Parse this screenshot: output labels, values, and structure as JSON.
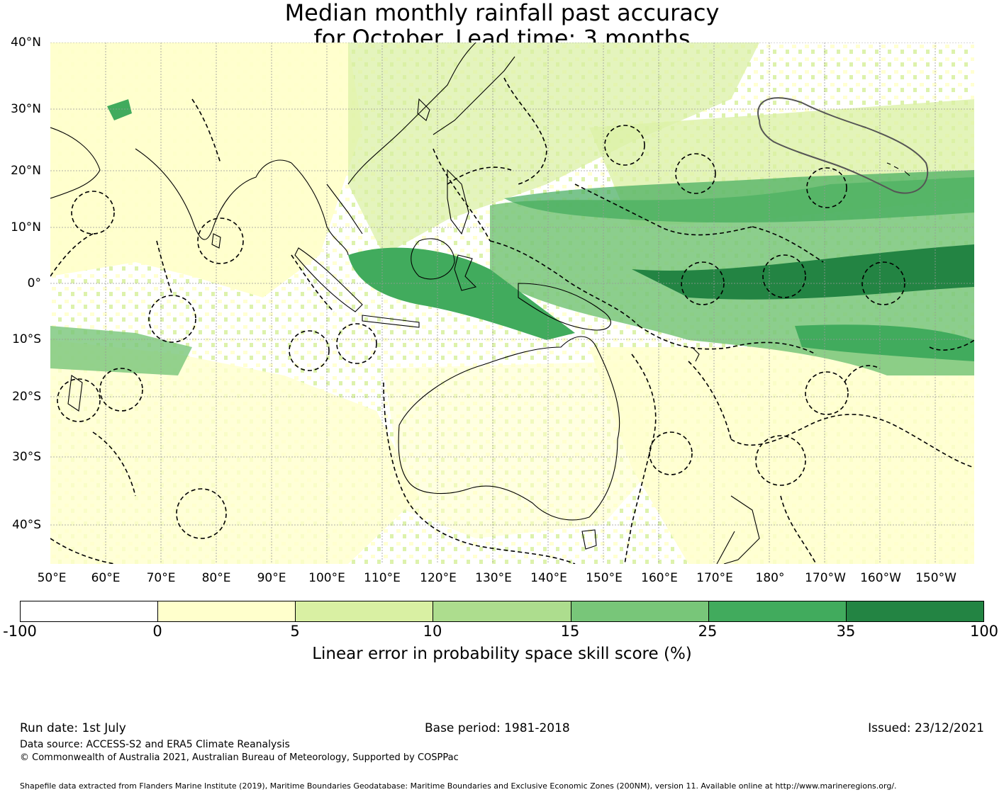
{
  "title": {
    "line1": "Median monthly rainfall past accuracy",
    "line2": "for October. Lead time: 3 months"
  },
  "map": {
    "lat_labels": [
      "40°N",
      "30°N",
      "20°N",
      "10°N",
      "0°",
      "10°S",
      "20°S",
      "30°S",
      "40°S"
    ],
    "lon_labels": [
      "50°E",
      "60°E",
      "70°E",
      "80°E",
      "90°E",
      "100°E",
      "110°E",
      "120°E",
      "130°E",
      "140°E",
      "150°E",
      "160°E",
      "170°E",
      "180°",
      "170°W",
      "160°W",
      "150°W"
    ],
    "lon_range": [
      50,
      210
    ],
    "lat_range": [
      -47,
      40
    ],
    "colors": {
      "low": "#ffffcc",
      "mid": "#addd8e",
      "high": "#238443",
      "boundary": "#000000",
      "land_edge": "#000000"
    }
  },
  "colorbar": {
    "ticks": [
      "-100",
      "0",
      "5",
      "10",
      "15",
      "25",
      "35",
      "100"
    ],
    "colors": [
      "#ffffff",
      "#ffffcc",
      "#d9f0a3",
      "#addd8e",
      "#78c679",
      "#41ab5d",
      "#238443"
    ],
    "label": "Linear error in probability space skill score (%)"
  },
  "footer": {
    "run_date": "Run date: 1st July",
    "base_period": "Base period: 1981-2018",
    "issued": "Issued: 23/12/2021",
    "data_source": "Data source: ACCESS-S2 and ERA5 Climate Reanalysis",
    "copyright": "© Commonwealth of Australia 2021, Australian Bureau of Meteorology, Supported by COSPPac",
    "shapefile": "Shapefile data extracted from Flanders Marine Institute (2019), Maritime Boundaries Geodatabase: Maritime Boundaries and Exclusive Economic Zones (200NM), version 11. Available online at http://www.marineregions.org/."
  }
}
